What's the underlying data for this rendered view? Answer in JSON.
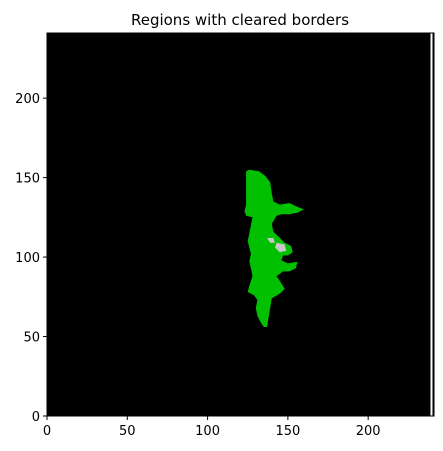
{
  "chart_data": {
    "type": "heatmap",
    "title": "Regions with cleared borders",
    "xlabel": "",
    "ylabel": "",
    "xlim": [
      0,
      241
    ],
    "ylim": [
      0,
      241
    ],
    "x_ticks": [
      0,
      50,
      100,
      150,
      200
    ],
    "y_ticks": [
      0,
      50,
      100,
      150,
      200
    ],
    "grid": false,
    "background_color": "#000000",
    "region_color": "#00c000",
    "hole_color": "#c8c8c8",
    "image_border_line_color": "#ffffff",
    "regions": [
      {
        "label": "",
        "outline": [
          [
            126,
            155
          ],
          [
            132,
            154
          ],
          [
            136,
            151
          ],
          [
            139,
            147
          ],
          [
            140,
            140
          ],
          [
            141,
            135
          ],
          [
            145,
            133
          ],
          [
            151,
            134
          ],
          [
            155,
            132
          ],
          [
            160,
            130
          ],
          [
            156,
            128
          ],
          [
            151,
            127
          ],
          [
            146,
            127
          ],
          [
            143,
            126
          ],
          [
            140,
            121
          ],
          [
            141,
            116
          ],
          [
            144,
            113
          ],
          [
            148,
            109
          ],
          [
            152,
            107
          ],
          [
            153,
            103
          ],
          [
            150,
            101
          ],
          [
            147,
            101
          ],
          [
            146,
            98
          ],
          [
            150,
            96
          ],
          [
            156,
            97
          ],
          [
            155,
            93
          ],
          [
            151,
            91
          ],
          [
            147,
            91
          ],
          [
            143,
            88
          ],
          [
            145,
            85
          ],
          [
            148,
            80
          ],
          [
            145,
            77
          ],
          [
            140,
            74
          ],
          [
            139,
            68
          ],
          [
            138,
            62
          ],
          [
            137,
            56
          ],
          [
            135,
            56
          ],
          [
            133,
            59
          ],
          [
            131,
            63
          ],
          [
            130,
            68
          ],
          [
            131,
            73
          ],
          [
            129,
            76
          ],
          [
            125,
            78
          ],
          [
            126,
            82
          ],
          [
            128,
            88
          ],
          [
            127,
            93
          ],
          [
            126,
            97
          ],
          [
            127,
            102
          ],
          [
            126,
            106
          ],
          [
            125,
            110
          ],
          [
            126,
            115
          ],
          [
            127,
            120
          ],
          [
            128,
            125
          ],
          [
            124,
            126
          ],
          [
            123,
            129
          ],
          [
            124,
            133
          ],
          [
            124,
            138
          ],
          [
            124,
            143
          ],
          [
            124,
            150
          ],
          [
            124,
            154
          ]
        ],
        "holes": [
          [
            [
              137,
              112
            ],
            [
              141,
              112
            ],
            [
              142,
              109
            ],
            [
              139,
              109
            ]
          ],
          [
            [
              143,
              109
            ],
            [
              148,
              108
            ],
            [
              149,
              104
            ],
            [
              145,
              103
            ],
            [
              142,
              106
            ]
          ]
        ]
      }
    ]
  }
}
